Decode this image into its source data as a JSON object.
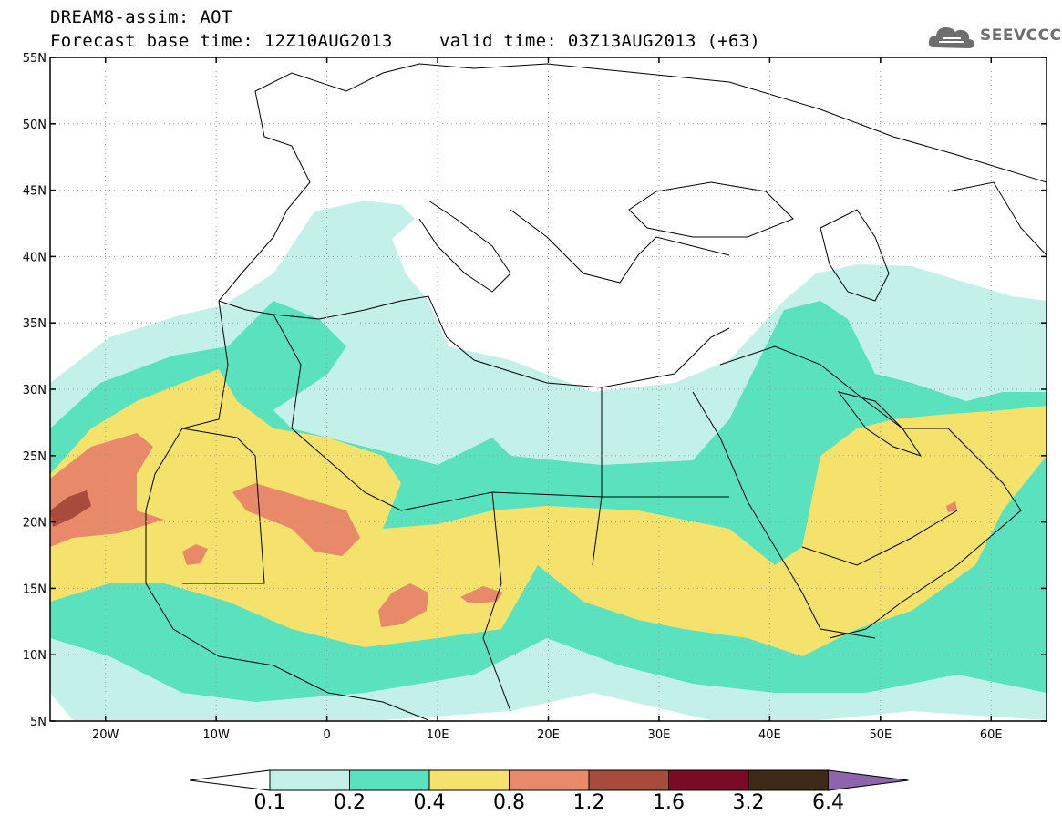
{
  "header": {
    "title_line1": "DREAM8-assim: AOT",
    "title_line2": "Forecast base time: 12Z10AUG2013",
    "valid_time": "valid time: 03Z13AUG2013 (+63)",
    "logo_text": "SEEVCCC"
  },
  "map": {
    "lon_range": [
      -25,
      65
    ],
    "lat_range": [
      5,
      55
    ],
    "lat_labels": [
      "55N",
      "50N",
      "45N",
      "40N",
      "35N",
      "30N",
      "25N",
      "20N",
      "15N",
      "10N",
      "5N"
    ],
    "lat_values": [
      55,
      50,
      45,
      40,
      35,
      30,
      25,
      20,
      15,
      10,
      5
    ],
    "lon_labels": [
      "20W",
      "10W",
      "0",
      "10E",
      "20E",
      "30E",
      "40E",
      "50E",
      "60E"
    ],
    "lon_values": [
      -20,
      -10,
      0,
      10,
      20,
      30,
      40,
      50,
      60
    ]
  },
  "colorbar": {
    "labels": [
      "0.1",
      "0.2",
      "0.4",
      "0.8",
      "1.2",
      "1.6",
      "3.2",
      "6.4"
    ],
    "colors": [
      "#ffffff",
      "#c4f0ea",
      "#5ae2bf",
      "#f4e26c",
      "#e8896a",
      "#a84a3c",
      "#7a0a26",
      "#3e2a18",
      "#8e64aa"
    ]
  }
}
